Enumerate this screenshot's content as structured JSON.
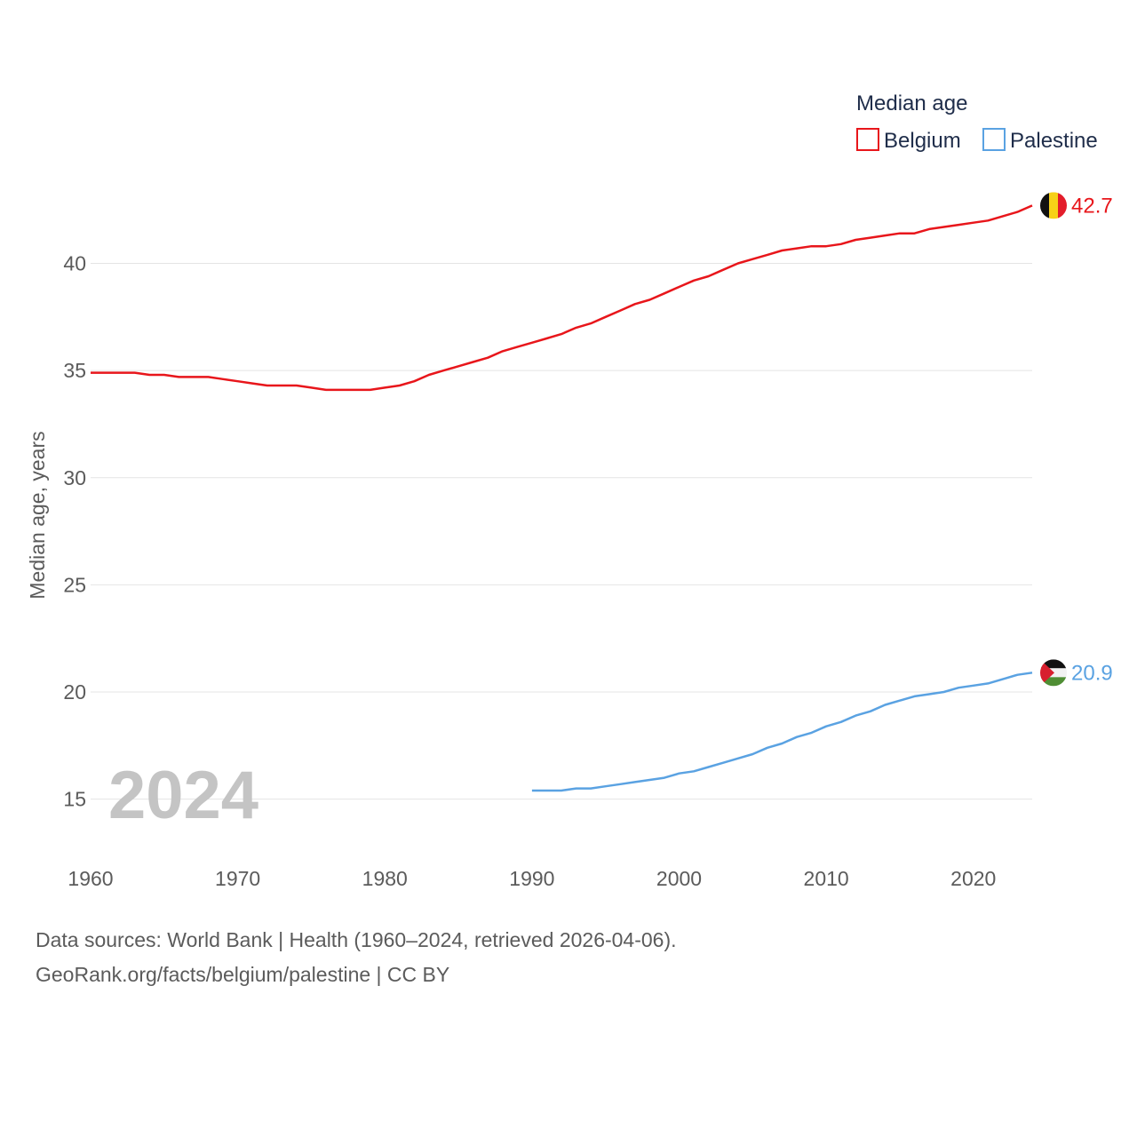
{
  "chart_data": {
    "type": "line",
    "ylabel": "Median age, years",
    "ylim": [
      12.5,
      44
    ],
    "xlim": [
      1960,
      2024
    ],
    "x_ticks": [
      1960,
      1970,
      1980,
      1990,
      2000,
      2010,
      2020
    ],
    "y_ticks": [
      15,
      20,
      25,
      30,
      35,
      40
    ],
    "legend": {
      "title": "Median age",
      "position": "top-right"
    },
    "year_label": "2024",
    "series": [
      {
        "name": "Belgium",
        "color": "#e8161b",
        "end_label": "42.7",
        "flag": "belgium-flag",
        "x": [
          1960,
          1961,
          1962,
          1963,
          1964,
          1965,
          1966,
          1967,
          1968,
          1969,
          1970,
          1971,
          1972,
          1973,
          1974,
          1975,
          1976,
          1977,
          1978,
          1979,
          1980,
          1981,
          1982,
          1983,
          1984,
          1985,
          1986,
          1987,
          1988,
          1989,
          1990,
          1991,
          1992,
          1993,
          1994,
          1995,
          1996,
          1997,
          1998,
          1999,
          2000,
          2001,
          2002,
          2003,
          2004,
          2005,
          2006,
          2007,
          2008,
          2009,
          2010,
          2011,
          2012,
          2013,
          2014,
          2015,
          2016,
          2017,
          2018,
          2019,
          2020,
          2021,
          2022,
          2023,
          2024
        ],
        "values": [
          34.9,
          34.9,
          34.9,
          34.9,
          34.8,
          34.8,
          34.7,
          34.7,
          34.7,
          34.6,
          34.5,
          34.4,
          34.3,
          34.3,
          34.3,
          34.2,
          34.1,
          34.1,
          34.1,
          34.1,
          34.2,
          34.3,
          34.5,
          34.8,
          35.0,
          35.2,
          35.4,
          35.6,
          35.9,
          36.1,
          36.3,
          36.5,
          36.7,
          37.0,
          37.2,
          37.5,
          37.8,
          38.1,
          38.3,
          38.6,
          38.9,
          39.2,
          39.4,
          39.7,
          40.0,
          40.2,
          40.4,
          40.6,
          40.7,
          40.8,
          40.8,
          40.9,
          41.1,
          41.2,
          41.3,
          41.4,
          41.4,
          41.6,
          41.7,
          41.8,
          41.9,
          42.0,
          42.2,
          42.4,
          42.7
        ]
      },
      {
        "name": "Palestine",
        "color": "#5aa2e2",
        "end_label": "20.9",
        "flag": "palestine-flag",
        "x": [
          1990,
          1991,
          1992,
          1993,
          1994,
          1995,
          1996,
          1997,
          1998,
          1999,
          2000,
          2001,
          2002,
          2003,
          2004,
          2005,
          2006,
          2007,
          2008,
          2009,
          2010,
          2011,
          2012,
          2013,
          2014,
          2015,
          2016,
          2017,
          2018,
          2019,
          2020,
          2021,
          2022,
          2023,
          2024
        ],
        "values": [
          15.4,
          15.4,
          15.4,
          15.5,
          15.5,
          15.6,
          15.7,
          15.8,
          15.9,
          16.0,
          16.2,
          16.3,
          16.5,
          16.7,
          16.9,
          17.1,
          17.4,
          17.6,
          17.9,
          18.1,
          18.4,
          18.6,
          18.9,
          19.1,
          19.4,
          19.6,
          19.8,
          19.9,
          20.0,
          20.2,
          20.3,
          20.4,
          20.6,
          20.8,
          20.9
        ]
      }
    ]
  },
  "footer": {
    "line1": "Data sources: World Bank | Health (1960–2024, retrieved 2026-04-06).",
    "line2": "GeoRank.org/facts/belgium/palestine | CC BY"
  }
}
